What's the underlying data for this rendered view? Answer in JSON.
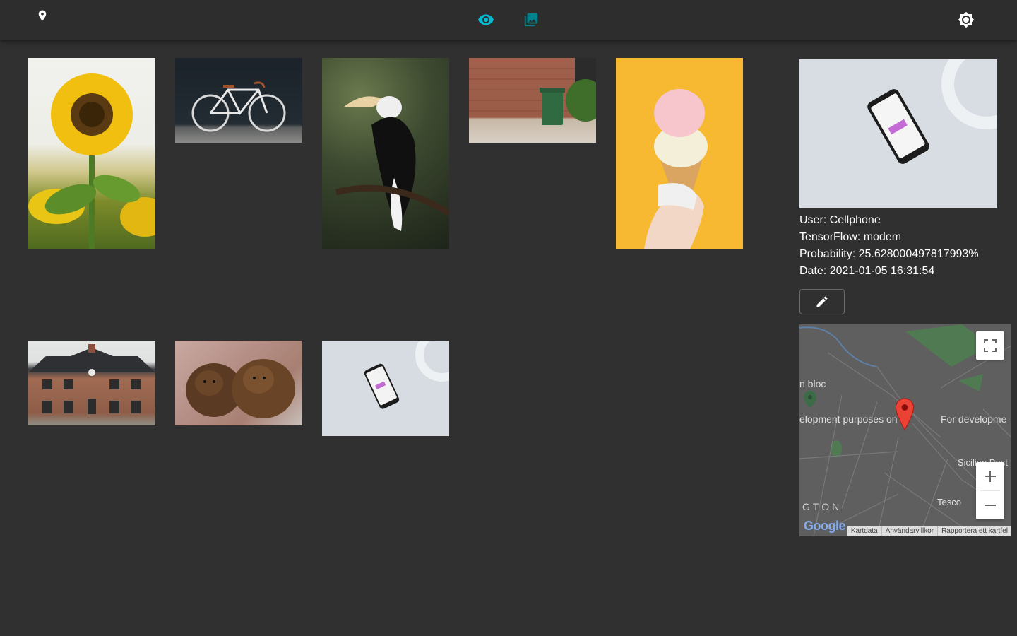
{
  "appbar": {
    "accent": "#00bcd4",
    "icons": [
      "location-pin-icon",
      "eye-icon",
      "photo-library-icon",
      "brightness-icon"
    ]
  },
  "gallery": {
    "items": [
      {
        "subject": "sunflower"
      },
      {
        "subject": "bicycle"
      },
      {
        "subject": "hornbill"
      },
      {
        "subject": "trash-bin"
      },
      {
        "subject": "ice-cream"
      },
      {
        "subject": "house"
      },
      {
        "subject": "bears"
      },
      {
        "subject": "cellphone"
      }
    ]
  },
  "detail": {
    "user": "User: Cellphone",
    "tensorflow": "TensorFlow: modem",
    "probability": "Probability: 25.628000497817993%",
    "date": "Date: 2021-01-05 16:31:54",
    "edit_icon": "pencil-icon"
  },
  "map": {
    "labels": {
      "dev_left": "elopment purposes on",
      "dev_right": "For developme",
      "bloc": "n bloc",
      "tesco": "Tesco",
      "sicilian": "Sicilian Pest",
      "gton": "GTON"
    },
    "google": "Google",
    "attribution": {
      "kartdata": "Kartdata",
      "terms": "Användarvillkor",
      "report": "Rapportera ett kartfel"
    }
  }
}
